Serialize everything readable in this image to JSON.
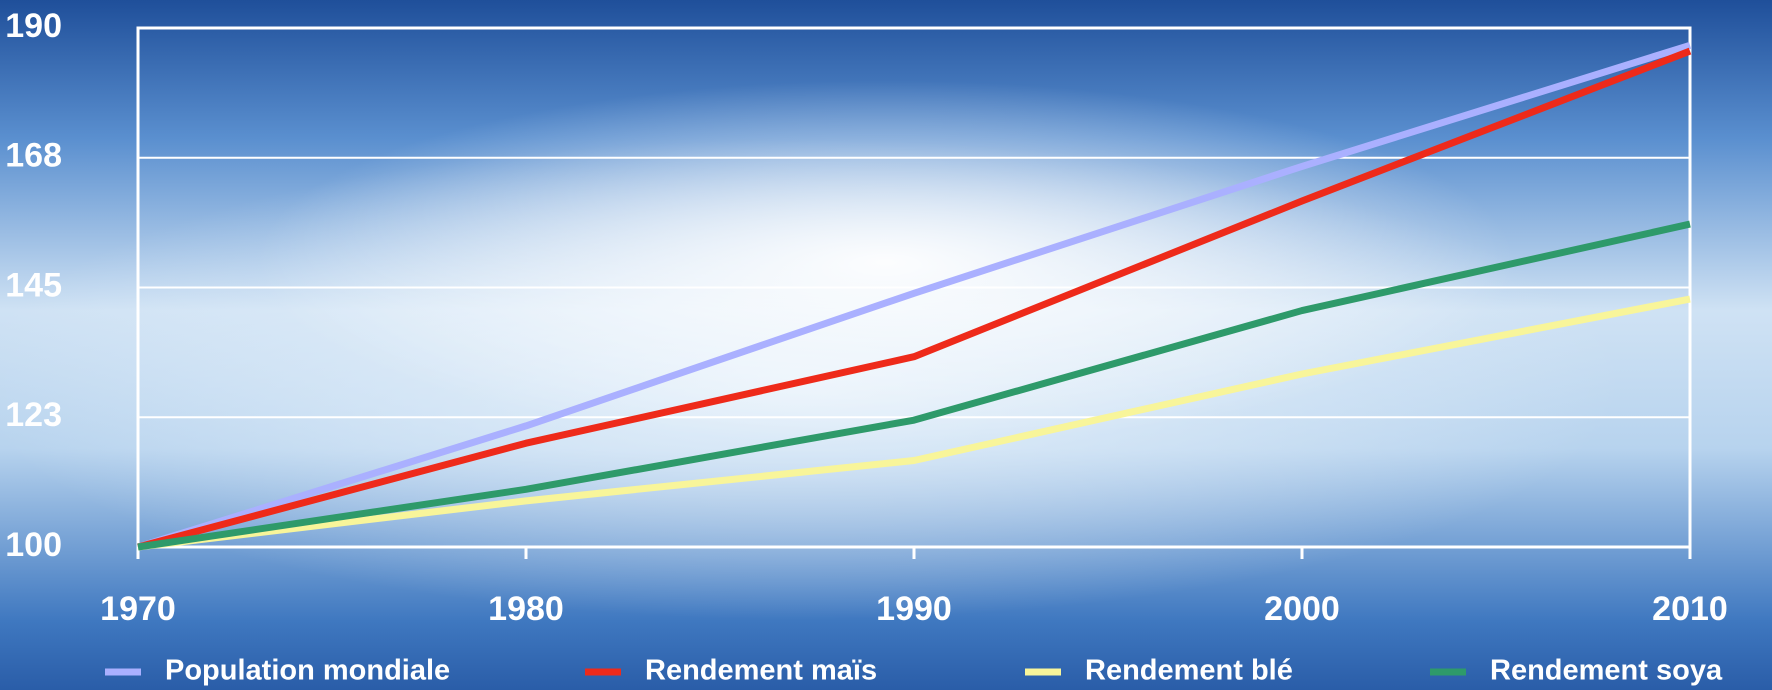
{
  "chart_data": {
    "type": "line",
    "x": [
      1970,
      1980,
      1990,
      2000,
      2010
    ],
    "xlim": [
      1970,
      2010
    ],
    "xticks": [
      1970,
      1980,
      1990,
      2000,
      2010
    ],
    "ylim": [
      100,
      190
    ],
    "yticks": [
      100,
      {
        "value": 122.5,
        "label": "123"
      },
      145,
      {
        "value": 167.5,
        "label": "168"
      },
      190
    ],
    "grid": true,
    "legend": "bottom",
    "series": [
      {
        "name": "Population mondiale",
        "color": "#aab0ff",
        "values": [
          100,
          121,
          144,
          166,
          187
        ]
      },
      {
        "name": "Rendement maïs",
        "color": "#ee2a1a",
        "values": [
          100,
          118,
          133,
          160,
          186
        ]
      },
      {
        "name": "Rendement blé",
        "color": "#f8f59a",
        "values": [
          100,
          108,
          115,
          130,
          143
        ]
      },
      {
        "name": "Rendement soya",
        "color": "#2e9a6a",
        "values": [
          100,
          110,
          122,
          141,
          156
        ]
      }
    ]
  }
}
